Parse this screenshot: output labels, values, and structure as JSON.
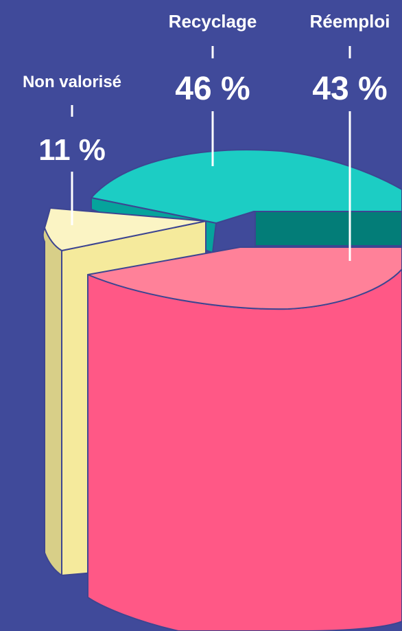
{
  "chart_data": {
    "type": "pie",
    "categories": [
      "Non valorisé",
      "Recyclage",
      "Réemploi"
    ],
    "values": [
      11,
      46,
      43
    ],
    "value_labels": [
      "11 %",
      "46 %",
      "43 %"
    ],
    "unit": "%",
    "colors": {
      "background": "#404a9a",
      "non_valorise_top": "#fbf4c4",
      "non_valorise_side": "#f5ea9c",
      "non_valorise_back": "#d8cf88",
      "recyclage_top": "#1ccdc4",
      "recyclage_side": "#06a39c",
      "reemploi_top": "#ff8199",
      "reemploi_side": "#ff5886",
      "reemploi_cut": "#037d78",
      "outline": "#3d4591",
      "leader": "#ffffff"
    }
  }
}
